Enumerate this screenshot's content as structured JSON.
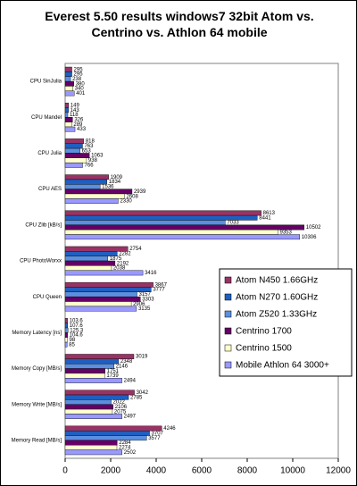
{
  "chart_data": {
    "type": "bar",
    "orientation": "horizontal",
    "title": "Everest 5.50 results windows7 32bit Atom vs. Centrino vs. Athlon 64 mobile",
    "categories": [
      "CPU SinJulia",
      "CPU Mandel",
      "CPU Julia",
      "CPU AES",
      "CPU Zlib [kB/s]",
      "CPU PhotoWorxx",
      "CPU Queen",
      "Memory Latency [ns]",
      "Memory Copy [MB/s]",
      "Memory Write [MB/s]",
      "Memory Read [MB/s]"
    ],
    "series": [
      {
        "name": "Atom N450 1.66GHz",
        "color": "#993366",
        "values": [
          295,
          149,
          818,
          1909,
          8613,
          2754,
          3867,
          103.6,
          3019,
          3042,
          4246
        ]
      },
      {
        "name": "Atom N270  1.60GHz",
        "color": "#1f5fc0",
        "values": [
          295,
          143,
          763,
          1834,
          8441,
          2282,
          3777,
          107.6,
          2348,
          2785,
          3707
        ]
      },
      {
        "name": "Atom Z520 1.33GHz",
        "color": "#5b8fe0",
        "values": [
          238,
          118,
          653,
          1536,
          7033,
          1875,
          3157,
          125.3,
          2146,
          2022,
          3577
        ]
      },
      {
        "name": "Centrino 1700",
        "color": "#660066",
        "values": [
          380,
          326,
          1063,
          2939,
          10502,
          2192,
          3303,
          104.6,
          1751,
          2106,
          2284
        ]
      },
      {
        "name": "Centrino 1500",
        "color": "#ffffcc",
        "values": [
          340,
          289,
          938,
          2608,
          9353,
          2038,
          2906,
          98,
          1739,
          2075,
          2274
        ]
      },
      {
        "name": "Mobile Athlon 64 3000+",
        "color": "#9999ff",
        "values": [
          401,
          433,
          766,
          2330,
          10306,
          3416,
          3135,
          85,
          2494,
          2497,
          2502
        ]
      }
    ],
    "xlim": [
      0,
      12000
    ],
    "xticks": [
      0,
      2000,
      4000,
      6000,
      8000,
      10000,
      12000
    ],
    "legend": "right"
  }
}
